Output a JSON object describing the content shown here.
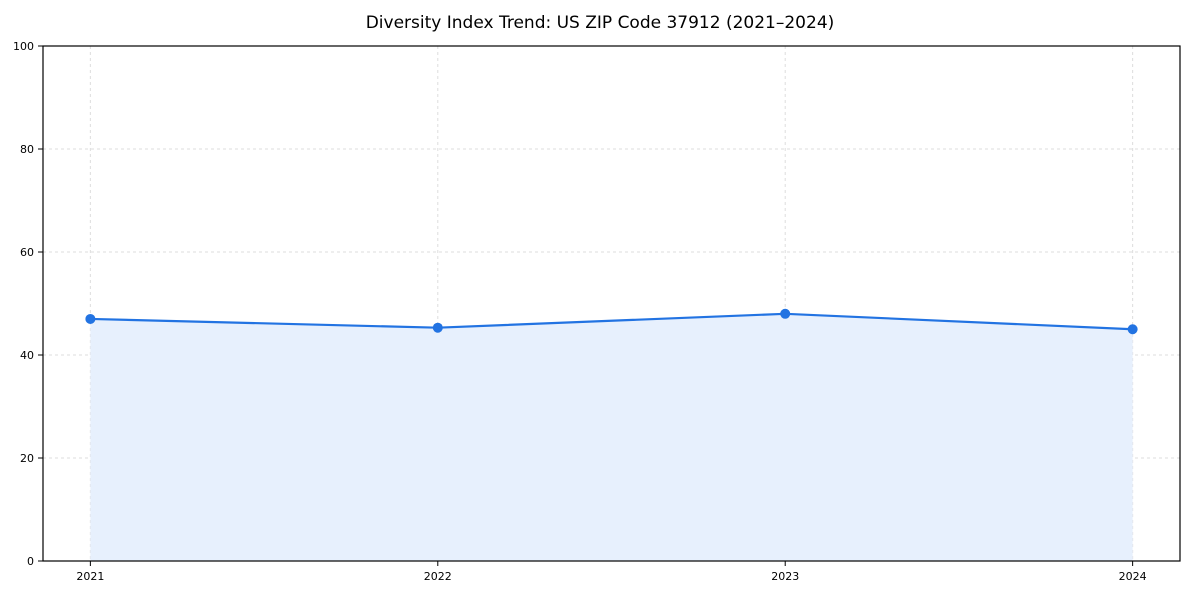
{
  "chart_data": {
    "type": "area",
    "title": "Diversity Index Trend: US ZIP Code 37912 (2021–2024)",
    "x": [
      2021,
      2022,
      2023,
      2024
    ],
    "x_tick_labels": [
      "2021",
      "2022",
      "2023",
      "2024"
    ],
    "series": [
      {
        "name": "Diversity Index",
        "values": [
          47,
          45.3,
          48,
          45
        ]
      }
    ],
    "xlabel": "",
    "ylabel": "",
    "ylim": [
      0,
      100
    ],
    "yticks": [
      0,
      20,
      40,
      60,
      80,
      100
    ],
    "x_margin_fraction": 0.04545,
    "grid": true,
    "grid_style": "dashed",
    "colors": {
      "line": "#2273e2",
      "marker": "#2273e2",
      "fill": "#e7f0fd",
      "grid": "#dddddd",
      "spine": "#000000",
      "tick_label": "#000000"
    },
    "legend_position": "none"
  }
}
